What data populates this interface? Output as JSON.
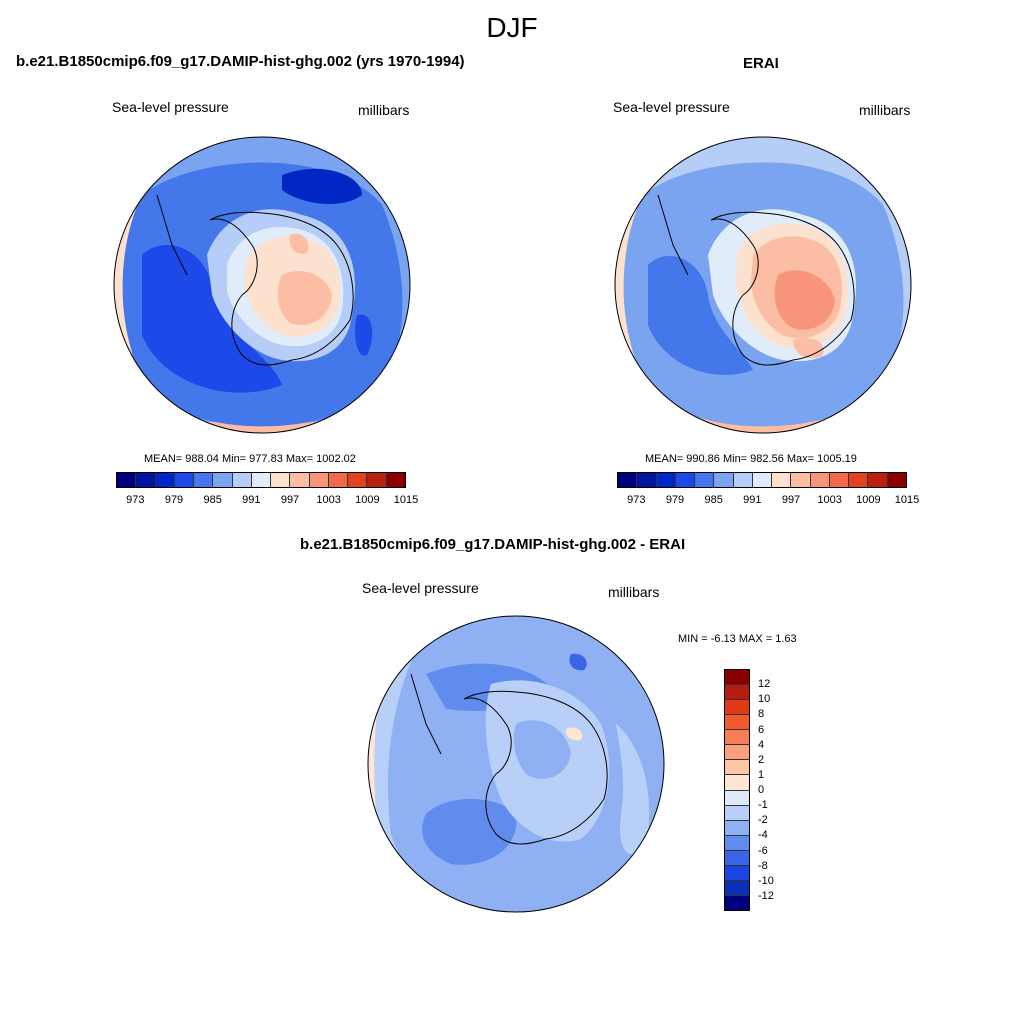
{
  "figure": {
    "title": "DJF"
  },
  "panels": {
    "model": {
      "title": "b.e21.B1850cmip6.f09_g17.DAMIP-hist-ghg.002 (yrs 1970-1994)",
      "left_label": "Sea-level pressure",
      "right_label": "millibars",
      "stats": "MEAN= 988.04  Min= 977.83  Max= 1002.02"
    },
    "obs": {
      "title": "ERAI",
      "left_label": "Sea-level pressure",
      "right_label": "millibars",
      "stats": "MEAN= 990.86  Min= 982.56  Max= 1005.19"
    },
    "diff": {
      "title": "b.e21.B1850cmip6.f09_g17.DAMIP-hist-ghg.002 - ERAI",
      "left_label": "Sea-level pressure",
      "right_label": "millibars",
      "stats": "MIN =  -6.13 MAX =   1.63"
    }
  },
  "colorbar_main": {
    "colors": [
      "#00007f",
      "#0014a0",
      "#0027c3",
      "#1c49e8",
      "#4477ea",
      "#7aa3f0",
      "#b5cdf7",
      "#e1ecfb",
      "#fde1cf",
      "#fbbea4",
      "#f8947a",
      "#f26a4c",
      "#e2401f",
      "#b9200f",
      "#8a0000"
    ],
    "tick_labels": [
      "973",
      "979",
      "985",
      "991",
      "997",
      "1003",
      "1009",
      "1015"
    ]
  },
  "colorbar_diff": {
    "colors_top_to_bottom": [
      "#8a0000",
      "#b51e0f",
      "#dd3a15",
      "#f45a2e",
      "#f67d55",
      "#f9a17d",
      "#fbc6a8",
      "#fde6d6",
      "#dfe9fa",
      "#b8cff7",
      "#8fb0f2",
      "#5f8ced",
      "#3a65e8",
      "#1b45e0",
      "#0a2dba",
      "#00007f"
    ],
    "tick_labels": [
      "12",
      "10",
      "8",
      "6",
      "4",
      "2",
      "1",
      "0",
      "-1",
      "-2",
      "-4",
      "-6",
      "-8",
      "-10",
      "-12"
    ]
  },
  "colors": {
    "ocean_model": "#2b60e6",
    "ocean_obs": "#5f8ced",
    "land_high": "#f8947a",
    "diff_base": "#8fb0f2"
  }
}
